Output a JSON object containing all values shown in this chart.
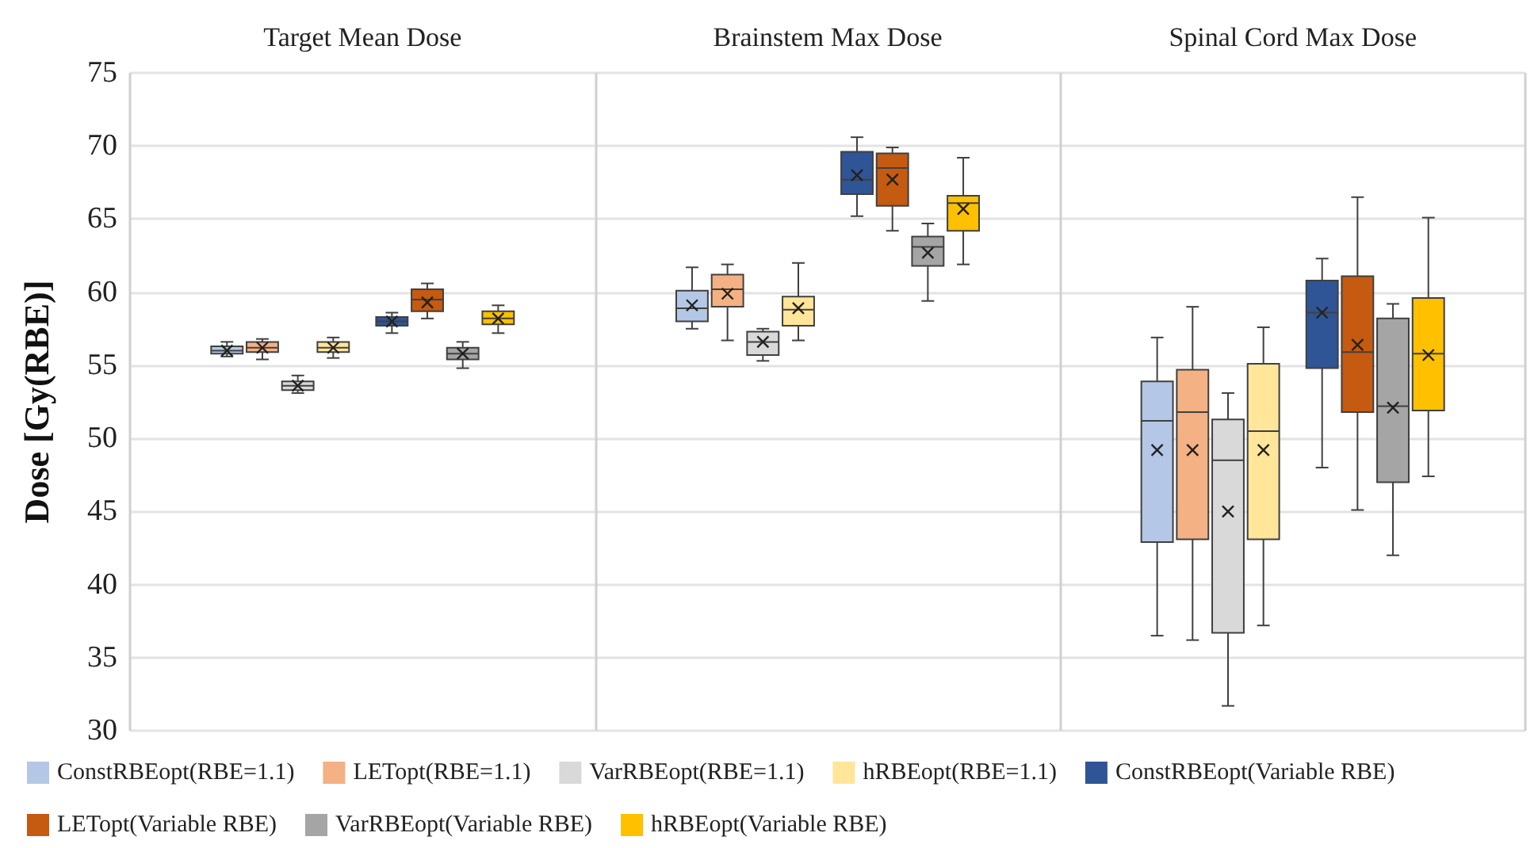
{
  "chart_data": {
    "type": "box",
    "categories": [
      "Target Mean Dose",
      "Brainstem Max Dose",
      "Spinal Cord Max Dose"
    ],
    "ylabel": "Dose [Gy(RBE)]",
    "ylim": [
      30,
      75
    ],
    "yticks": [
      30,
      35,
      40,
      45,
      50,
      55,
      60,
      65,
      70,
      75
    ],
    "grid": true,
    "legend": "bottom",
    "series": [
      {
        "name": "ConstRBEopt(RBE=1.1)",
        "color": "#b4c7e7",
        "boxes": [
          {
            "low": 55.6,
            "q1": 55.8,
            "median": 56,
            "q3": 56.3,
            "high": 56.6,
            "mean": 56
          },
          {
            "low": 57.5,
            "q1": 58,
            "median": 58.9,
            "q3": 60.1,
            "high": 61.7,
            "mean": 59.1
          },
          {
            "low": 36.5,
            "q1": 42.9,
            "median": 51.2,
            "q3": 53.9,
            "high": 56.9,
            "mean": 49.2
          }
        ]
      },
      {
        "name": "LETopt(RBE=1.1)",
        "color": "#f4b183",
        "boxes": [
          {
            "low": 55.4,
            "q1": 55.9,
            "median": 56.2,
            "q3": 56.6,
            "high": 56.8,
            "mean": 56.2
          },
          {
            "low": 56.7,
            "q1": 59,
            "median": 60.2,
            "q3": 61.2,
            "high": 61.9,
            "mean": 59.9
          },
          {
            "low": 36.2,
            "q1": 43.1,
            "median": 51.8,
            "q3": 54.7,
            "high": 59,
            "mean": 49.2
          }
        ]
      },
      {
        "name": "VarRBEopt(RBE=1.1)",
        "color": "#d9d9d9",
        "boxes": [
          {
            "low": 53.1,
            "q1": 53.3,
            "median": 53.6,
            "q3": 53.9,
            "high": 54.3,
            "mean": 53.6
          },
          {
            "low": 55.3,
            "q1": 55.7,
            "median": 56.6,
            "q3": 57.3,
            "high": 57.5,
            "mean": 56.6
          },
          {
            "low": 31.7,
            "q1": 36.7,
            "median": 48.5,
            "q3": 51.3,
            "high": 53.1,
            "mean": 45
          }
        ]
      },
      {
        "name": "hRBEopt(RBE=1.1)",
        "color": "#ffe699",
        "boxes": [
          {
            "low": 55.5,
            "q1": 55.9,
            "median": 56.2,
            "q3": 56.6,
            "high": 56.9,
            "mean": 56.2
          },
          {
            "low": 56.7,
            "q1": 57.7,
            "median": 58.8,
            "q3": 59.7,
            "high": 62,
            "mean": 58.9
          },
          {
            "low": 37.2,
            "q1": 43.1,
            "median": 50.5,
            "q3": 55.1,
            "high": 57.6,
            "mean": 49.2
          }
        ]
      },
      {
        "name": "ConstRBEopt(Variable RBE)",
        "color": "#2f5597",
        "boxes": [
          {
            "low": 57.2,
            "q1": 57.7,
            "median": 58,
            "q3": 58.3,
            "high": 58.6,
            "mean": 58
          },
          {
            "low": 65.2,
            "q1": 66.7,
            "median": 67.7,
            "q3": 69.6,
            "high": 70.6,
            "mean": 68
          },
          {
            "low": 48,
            "q1": 54.8,
            "median": 58.6,
            "q3": 60.8,
            "high": 62.3,
            "mean": 58.6
          }
        ]
      },
      {
        "name": "LETopt(Variable RBE)",
        "color": "#c55a11",
        "boxes": [
          {
            "low": 58.2,
            "q1": 58.7,
            "median": 59.5,
            "q3": 60.2,
            "high": 60.6,
            "mean": 59.3
          },
          {
            "low": 64.2,
            "q1": 65.9,
            "median": 68.5,
            "q3": 69.5,
            "high": 69.9,
            "mean": 67.7
          },
          {
            "low": 45.1,
            "q1": 51.8,
            "median": 55.9,
            "q3": 61.1,
            "high": 66.5,
            "mean": 56.4
          }
        ]
      },
      {
        "name": "VarRBEopt(Variable RBE)",
        "color": "#a5a5a5",
        "boxes": [
          {
            "low": 54.8,
            "q1": 55.4,
            "median": 55.8,
            "q3": 56.2,
            "high": 56.6,
            "mean": 55.8
          },
          {
            "low": 59.4,
            "q1": 61.8,
            "median": 63.1,
            "q3": 63.8,
            "high": 64.7,
            "mean": 62.7
          },
          {
            "low": 42,
            "q1": 47,
            "median": 52.2,
            "q3": 58.2,
            "high": 59.2,
            "mean": 52.1
          }
        ]
      },
      {
        "name": "hRBEopt(Variable RBE)",
        "color": "#ffc000",
        "boxes": [
          {
            "low": 57.2,
            "q1": 57.8,
            "median": 58.2,
            "q3": 58.7,
            "high": 59.1,
            "mean": 58.2
          },
          {
            "low": 61.9,
            "q1": 64.2,
            "median": 66.1,
            "q3": 66.6,
            "high": 69.2,
            "mean": 65.7
          },
          {
            "low": 47.4,
            "q1": 51.9,
            "median": 55.8,
            "q3": 59.6,
            "high": 65.1,
            "mean": 55.7
          }
        ]
      }
    ]
  }
}
